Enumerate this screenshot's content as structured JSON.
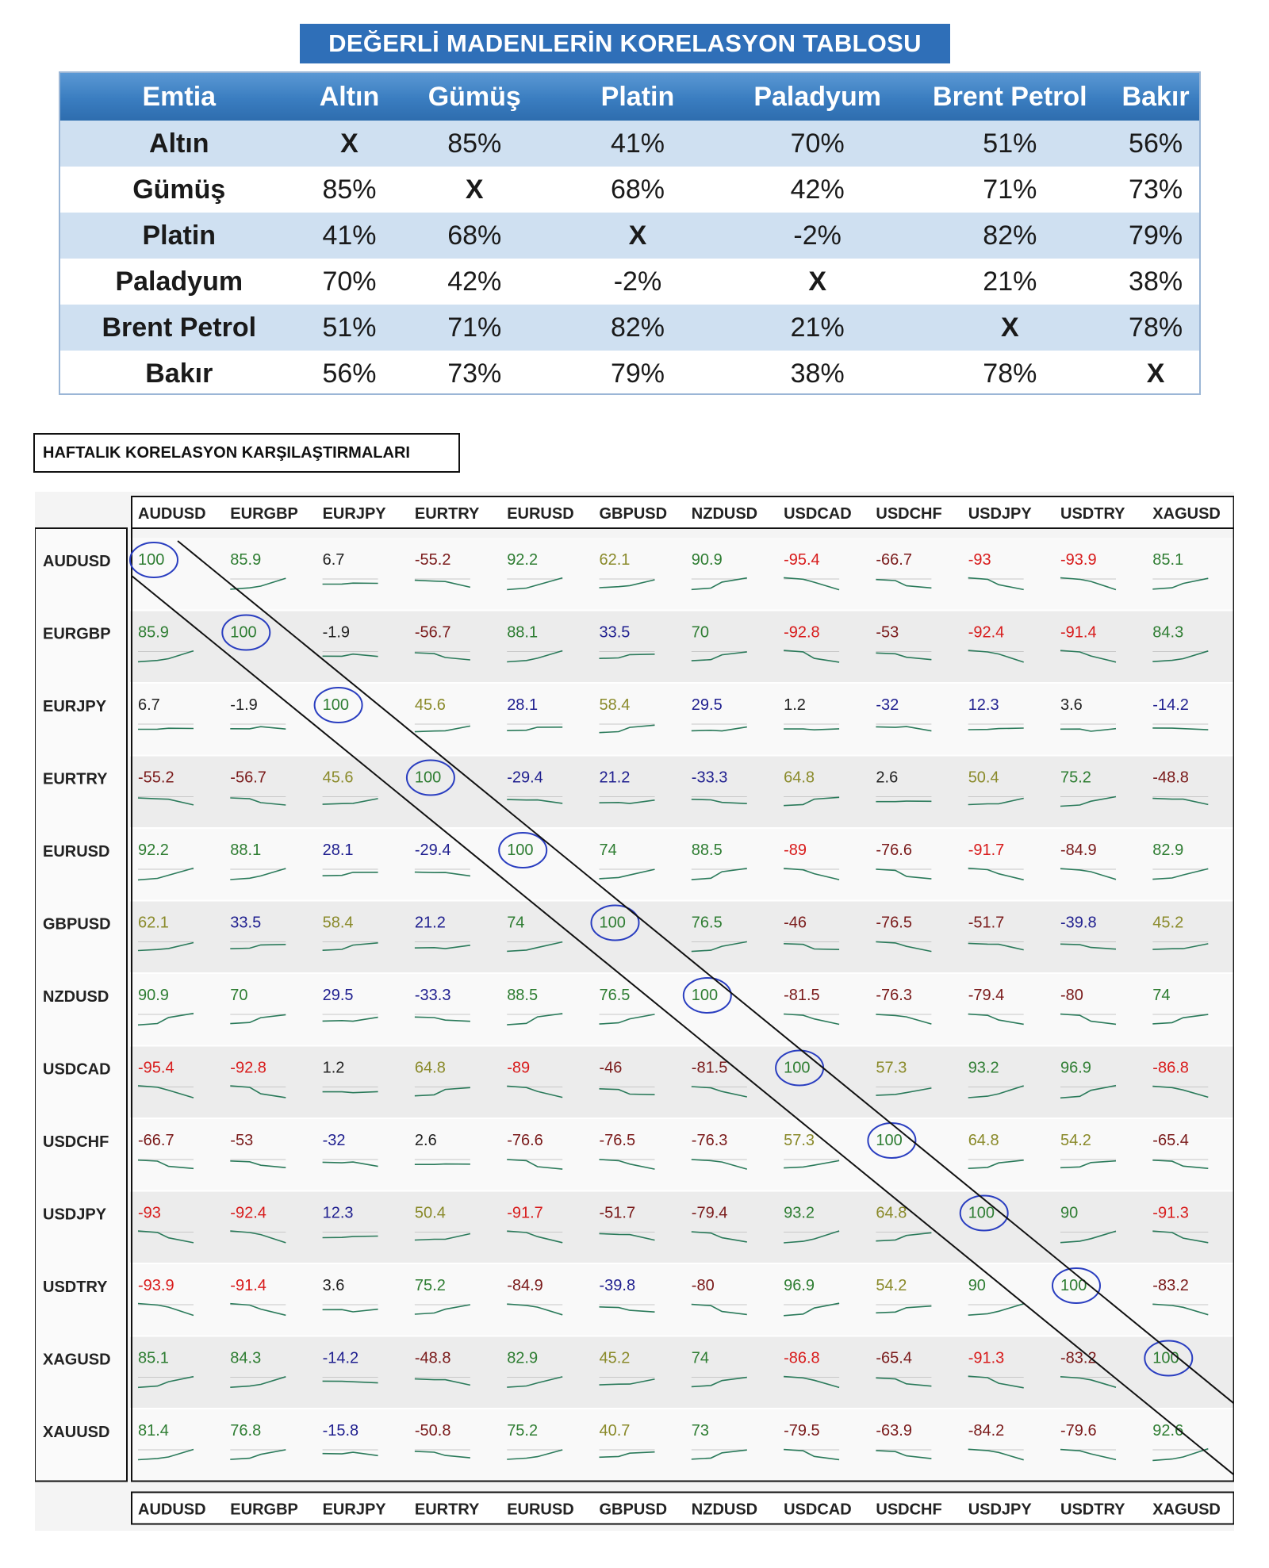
{
  "title": "DEĞERLİ MADENLERİN KORELASYON TABLOSU",
  "metals_table": {
    "headers": [
      "Emtia",
      "Altın",
      "Gümüş",
      "Platin",
      "Paladyum",
      "Brent Petrol",
      "Bakır"
    ],
    "rows": [
      {
        "label": "Altın",
        "values": [
          "X",
          "85%",
          "41%",
          "70%",
          "51%",
          "56%"
        ]
      },
      {
        "label": "Gümüş",
        "values": [
          "85%",
          "X",
          "68%",
          "42%",
          "71%",
          "73%"
        ]
      },
      {
        "label": "Platin",
        "values": [
          "41%",
          "68%",
          "X",
          "-2%",
          "82%",
          "79%"
        ]
      },
      {
        "label": "Paladyum",
        "values": [
          "70%",
          "42%",
          "-2%",
          "X",
          "21%",
          "38%"
        ]
      },
      {
        "label": "Brent Petrol",
        "values": [
          "51%",
          "71%",
          "82%",
          "21%",
          "X",
          "78%"
        ]
      },
      {
        "label": "Bakır",
        "values": [
          "56%",
          "73%",
          "79%",
          "38%",
          "78%",
          "X"
        ]
      }
    ]
  },
  "weekly_title": "HAFTALIK KORELASYON KARŞILAŞTIRMALARI",
  "matrix": {
    "columns": [
      "AUDUSD",
      "EURGBP",
      "EURJPY",
      "EURTRY",
      "EURUSD",
      "GBPUSD",
      "NZDUSD",
      "USDCAD",
      "USDCHF",
      "USDJPY",
      "USDTRY",
      "XAGUSD"
    ],
    "rows": [
      "AUDUSD",
      "EURGBP",
      "EURJPY",
      "EURTRY",
      "EURUSD",
      "GBPUSD",
      "NZDUSD",
      "USDCAD",
      "USDCHF",
      "USDJPY",
      "USDTRY",
      "XAGUSD",
      "XAUUSD"
    ],
    "values": [
      [
        "100",
        "85.9",
        "6.7",
        "-55.2",
        "92.2",
        "62.1",
        "90.9",
        "-95.4",
        "-66.7",
        "-93",
        "-93.9",
        "85.1"
      ],
      [
        "85.9",
        "100",
        "-1.9",
        "-56.7",
        "88.1",
        "33.5",
        "70",
        "-92.8",
        "-53",
        "-92.4",
        "-91.4",
        "84.3"
      ],
      [
        "6.7",
        "-1.9",
        "100",
        "45.6",
        "28.1",
        "58.4",
        "29.5",
        "1.2",
        "-32",
        "12.3",
        "3.6",
        "-14.2"
      ],
      [
        "-55.2",
        "-56.7",
        "45.6",
        "100",
        "-29.4",
        "21.2",
        "-33.3",
        "64.8",
        "2.6",
        "50.4",
        "75.2",
        "-48.8"
      ],
      [
        "92.2",
        "88.1",
        "28.1",
        "-29.4",
        "100",
        "74",
        "88.5",
        "-89",
        "-76.6",
        "-91.7",
        "-84.9",
        "82.9"
      ],
      [
        "62.1",
        "33.5",
        "58.4",
        "21.2",
        "74",
        "100",
        "76.5",
        "-46",
        "-76.5",
        "-51.7",
        "-39.8",
        "45.2"
      ],
      [
        "90.9",
        "70",
        "29.5",
        "-33.3",
        "88.5",
        "76.5",
        "100",
        "-81.5",
        "-76.3",
        "-79.4",
        "-80",
        "74"
      ],
      [
        "-95.4",
        "-92.8",
        "1.2",
        "64.8",
        "-89",
        "-46",
        "-81.5",
        "100",
        "57.3",
        "93.2",
        "96.9",
        "-86.8"
      ],
      [
        "-66.7",
        "-53",
        "-32",
        "2.6",
        "-76.6",
        "-76.5",
        "-76.3",
        "57.3",
        "100",
        "64.8",
        "54.2",
        "-65.4"
      ],
      [
        "-93",
        "-92.4",
        "12.3",
        "50.4",
        "-91.7",
        "-51.7",
        "-79.4",
        "93.2",
        "64.8",
        "100",
        "90",
        "-91.3"
      ],
      [
        "-93.9",
        "-91.4",
        "3.6",
        "75.2",
        "-84.9",
        "-39.8",
        "-80",
        "96.9",
        "54.2",
        "90",
        "100",
        "-83.2"
      ],
      [
        "85.1",
        "84.3",
        "-14.2",
        "-48.8",
        "82.9",
        "45.2",
        "74",
        "-86.8",
        "-65.4",
        "-91.3",
        "-83.2",
        "100"
      ],
      [
        "81.4",
        "76.8",
        "-15.8",
        "-50.8",
        "75.2",
        "40.7",
        "73",
        "-79.5",
        "-63.9",
        "-84.2",
        "-79.6",
        "92.6"
      ]
    ],
    "colors": {
      "strong_positive": "#2e7d32",
      "moderate_positive": "#8a8a2a",
      "weak": "#1f1f8f",
      "neutral": "#222222",
      "moderate_negative": "#7a1a1a",
      "strong_negative": "#d81b1b",
      "sparkline": "#2a7a5a",
      "circle": "#2a3ec0"
    }
  }
}
